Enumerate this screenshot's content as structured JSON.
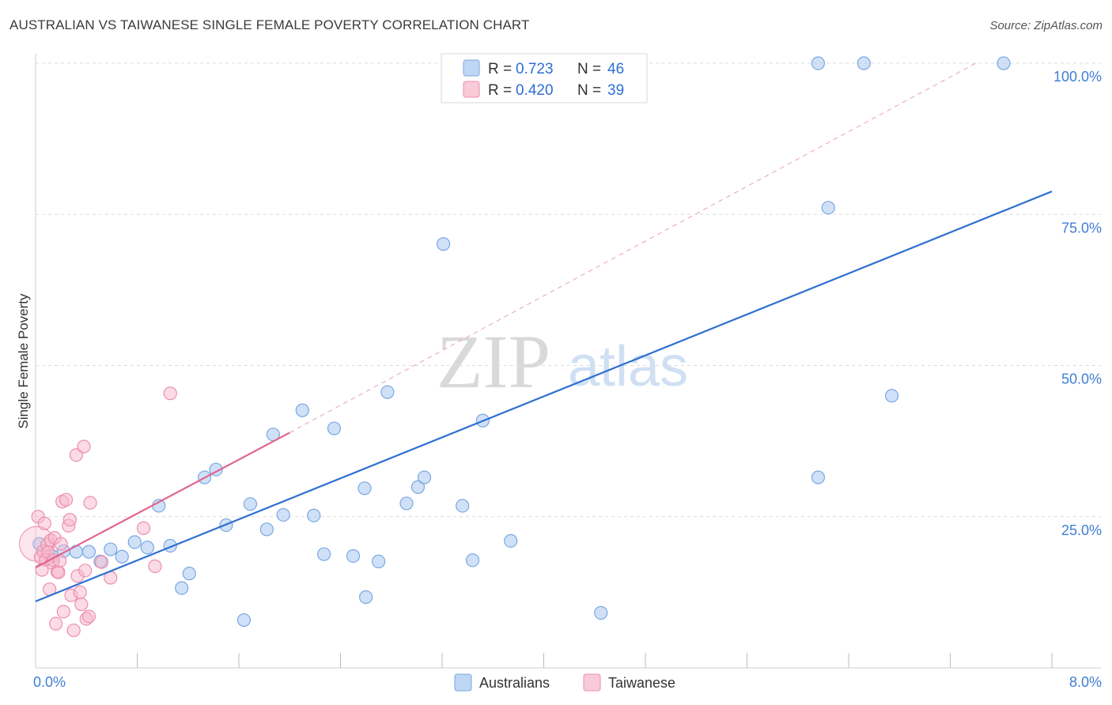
{
  "header": {
    "title": "AUSTRALIAN VS TAIWANESE SINGLE FEMALE POVERTY CORRELATION CHART",
    "source": "Source: ZipAtlas.com"
  },
  "watermark": {
    "zip": "ZIP",
    "atlas": "atlas"
  },
  "legend": {
    "rows": [
      {
        "r_label": "R =",
        "r_value": "0.723",
        "n_label": "N =",
        "n_value": "46",
        "color": "#a9c8f0",
        "stroke": "#7aa7e3"
      },
      {
        "r_label": "R =",
        "r_value": "0.420",
        "n_label": "N =",
        "n_value": "39",
        "color": "#f7b8cb",
        "stroke": "#ec8fae"
      }
    ]
  },
  "chart_data": {
    "type": "scatter",
    "title": "AUSTRALIAN VS TAIWANESE SINGLE FEMALE POVERTY CORRELATION CHART",
    "xlabel": "",
    "ylabel": "Single Female Poverty",
    "xlim": [
      0,
      8
    ],
    "ylim": [
      0,
      100
    ],
    "x_tick_labels": [
      {
        "value": 0,
        "label": "0.0%"
      },
      {
        "value": 8,
        "label": "8.0%"
      }
    ],
    "y_tick_labels": [
      {
        "value": 25,
        "label": "25.0%"
      },
      {
        "value": 50,
        "label": "50.0%"
      },
      {
        "value": 75,
        "label": "75.0%"
      },
      {
        "value": 100,
        "label": "100.0%"
      }
    ],
    "y_gridlines": [
      25,
      50,
      75,
      100
    ],
    "x_minor_ticks": [
      0.8,
      1.6,
      2.4,
      3.2,
      4.0,
      4.8,
      5.6,
      6.4,
      7.2,
      8.0
    ],
    "legend_position": "top-center",
    "series": [
      {
        "name": "Australians",
        "color": "#a9c8f0",
        "stroke": "#7aa7e3",
        "trend": {
          "x": [
            0,
            8
          ],
          "y": [
            11.0,
            78.8
          ],
          "color": "#2e6fd1"
        },
        "points": [
          [
            0.03,
            20.5
          ],
          [
            0.13,
            18.5
          ],
          [
            0.22,
            19.3
          ],
          [
            0.32,
            19.2
          ],
          [
            0.42,
            19.2
          ],
          [
            0.51,
            17.6
          ],
          [
            0.59,
            19.6
          ],
          [
            0.68,
            18.4
          ],
          [
            0.78,
            20.8
          ],
          [
            0.88,
            19.9
          ],
          [
            0.97,
            26.8
          ],
          [
            1.06,
            20.2
          ],
          [
            1.15,
            13.2
          ],
          [
            1.21,
            15.6
          ],
          [
            1.33,
            31.5
          ],
          [
            1.42,
            32.8
          ],
          [
            1.5,
            23.6
          ],
          [
            1.64,
            7.9
          ],
          [
            1.69,
            27.1
          ],
          [
            1.82,
            22.9
          ],
          [
            1.87,
            38.6
          ],
          [
            1.95,
            25.3
          ],
          [
            2.1,
            42.6
          ],
          [
            2.19,
            25.2
          ],
          [
            2.27,
            18.8
          ],
          [
            2.35,
            39.6
          ],
          [
            2.5,
            18.5
          ],
          [
            2.6,
            11.7
          ],
          [
            2.59,
            29.7
          ],
          [
            2.7,
            17.6
          ],
          [
            2.77,
            45.6
          ],
          [
            2.92,
            27.2
          ],
          [
            3.01,
            29.9
          ],
          [
            3.06,
            31.5
          ],
          [
            3.21,
            70.1
          ],
          [
            3.36,
            26.8
          ],
          [
            3.44,
            17.8
          ],
          [
            3.52,
            40.9
          ],
          [
            3.74,
            21.0
          ],
          [
            4.45,
            9.1
          ],
          [
            6.16,
            31.5
          ],
          [
            6.16,
            100.0
          ],
          [
            6.52,
            100.0
          ],
          [
            6.24,
            76.1
          ],
          [
            6.74,
            45.0
          ],
          [
            7.62,
            100.0
          ]
        ]
      },
      {
        "name": "Taiwanese",
        "color": "#f7b8cb",
        "stroke": "#ec8fae",
        "trend": {
          "x": [
            0,
            2.0
          ],
          "y": [
            16.6,
            38.9
          ],
          "color": "#e0648f"
        },
        "trend_ext": {
          "x": [
            2.0,
            7.4
          ],
          "y": [
            38.9,
            100.0
          ],
          "color": "#e6a0b8"
        },
        "points": [
          [
            0.02,
            25.0
          ],
          [
            0.04,
            18.3
          ],
          [
            0.05,
            16.2
          ],
          [
            0.06,
            19.3
          ],
          [
            0.07,
            23.9
          ],
          [
            0.08,
            17.9
          ],
          [
            0.09,
            20.4
          ],
          [
            0.1,
            19.1
          ],
          [
            0.11,
            13.0
          ],
          [
            0.12,
            21.1
          ],
          [
            0.13,
            17.4
          ],
          [
            0.14,
            17.8
          ],
          [
            0.15,
            21.5
          ],
          [
            0.16,
            7.3
          ],
          [
            0.17,
            15.9
          ],
          [
            0.18,
            15.8
          ],
          [
            0.19,
            17.7
          ],
          [
            0.2,
            20.5
          ],
          [
            0.21,
            27.5
          ],
          [
            0.22,
            9.3
          ],
          [
            0.24,
            27.8
          ],
          [
            0.26,
            23.5
          ],
          [
            0.27,
            24.5
          ],
          [
            0.28,
            12.0
          ],
          [
            0.3,
            6.2
          ],
          [
            0.32,
            35.2
          ],
          [
            0.33,
            15.2
          ],
          [
            0.35,
            12.5
          ],
          [
            0.36,
            10.5
          ],
          [
            0.38,
            36.6
          ],
          [
            0.39,
            16.1
          ],
          [
            0.4,
            8.1
          ],
          [
            0.42,
            8.5
          ],
          [
            0.43,
            27.3
          ],
          [
            0.52,
            17.5
          ],
          [
            0.59,
            14.9
          ],
          [
            0.85,
            23.1
          ],
          [
            0.94,
            16.8
          ],
          [
            1.06,
            45.4
          ]
        ],
        "large_point": [
          0.01,
          20.5
        ]
      }
    ]
  },
  "bottom_legend": [
    {
      "label": "Australians",
      "color": "#a9c8f0",
      "stroke": "#7aa7e3"
    },
    {
      "label": "Taiwanese",
      "color": "#f7b8cb",
      "stroke": "#ec8fae"
    }
  ]
}
